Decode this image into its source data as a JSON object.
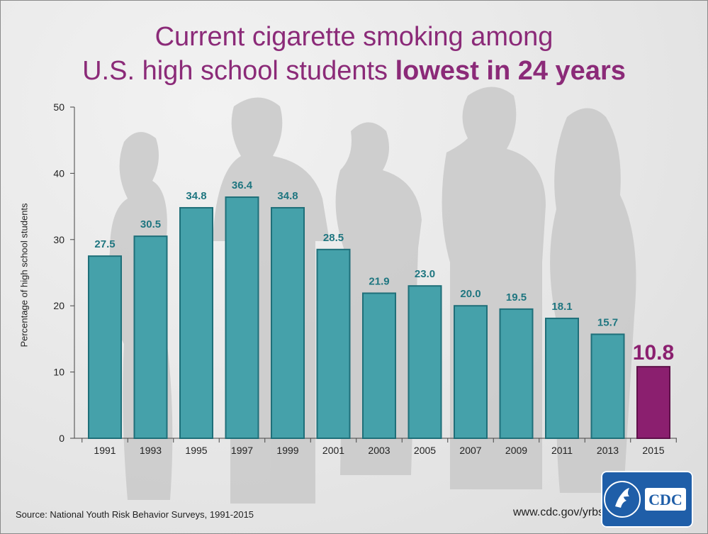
{
  "title": {
    "line1": "Current cigarette smoking among",
    "line2_regular": "U.S. high school students ",
    "line2_bold": "lowest in 24 years"
  },
  "chart_data": {
    "type": "bar",
    "categories": [
      "1991",
      "1993",
      "1995",
      "1997",
      "1999",
      "2001",
      "2003",
      "2005",
      "2007",
      "2009",
      "2011",
      "2013",
      "2015"
    ],
    "values": [
      27.5,
      30.5,
      34.8,
      36.4,
      34.8,
      28.5,
      21.9,
      23.0,
      20.0,
      19.5,
      18.1,
      15.7,
      10.8
    ],
    "value_labels": [
      "27.5",
      "30.5",
      "34.8",
      "36.4",
      "34.8",
      "28.5",
      "21.9",
      "23.0",
      "20.0",
      "19.5",
      "18.1",
      "15.7",
      "10.8"
    ],
    "ylabel": "Percentage of high school students",
    "xlabel": "",
    "ylim": [
      0,
      50
    ],
    "yticks": [
      "0",
      "10",
      "20",
      "30",
      "40",
      "50"
    ],
    "bar_color": "#45a1aa",
    "bar_stroke": "#1f6f79",
    "highlight_color": "#8b1f6f",
    "highlight_index": 12,
    "label_color": "#1f7680",
    "grid": false
  },
  "footer": {
    "source": "Source: National Youth Risk Behavior Surveys, 1991-2015",
    "url": "www.cdc.gov/yrbs",
    "logo_text": "CDC"
  }
}
